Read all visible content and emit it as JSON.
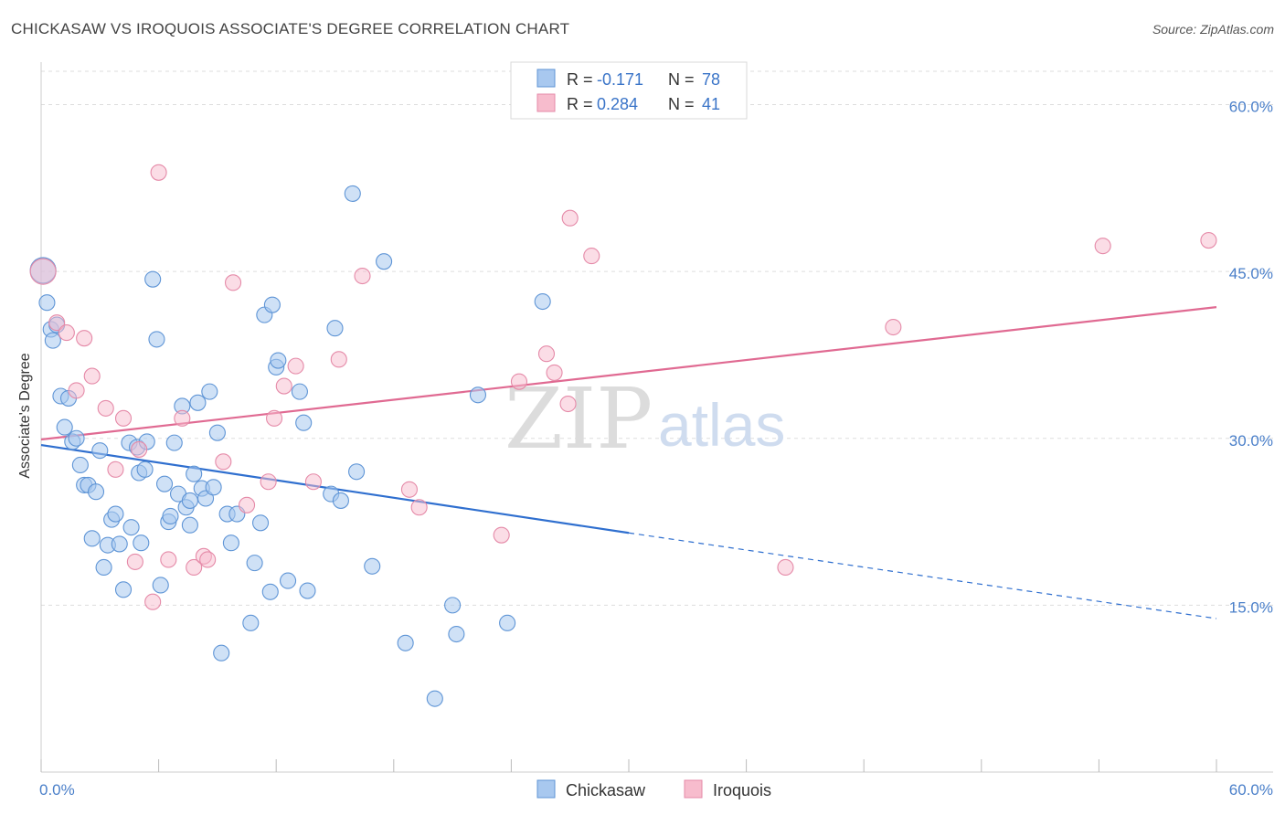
{
  "title": "CHICKASAW VS IROQUOIS ASSOCIATE'S DEGREE CORRELATION CHART",
  "source": "Source: ZipAtlas.com",
  "watermark": {
    "zip": "ZIP",
    "atlas": "atlas"
  },
  "colors": {
    "chickasaw_fill": "#a8c8ef",
    "chickasaw_stroke": "#5f95d6",
    "chickasaw_line": "#2f6fcf",
    "iroquois_fill": "#f7bccd",
    "iroquois_stroke": "#e58aa8",
    "iroquois_line": "#e06a92",
    "grid": "#dddddd",
    "tick_text": "#4a7fc9"
  },
  "legend": {
    "rows": [
      {
        "r_label": "R =",
        "r_value": "-0.171",
        "n_label": "N =",
        "n_value": "78"
      },
      {
        "r_label": "R =",
        "r_value": "0.284",
        "n_label": "N =",
        "n_value": "41"
      }
    ]
  },
  "chart_data": {
    "type": "scatter",
    "title": "CHICKASAW VS IROQUOIS ASSOCIATE'S DEGREE CORRELATION CHART",
    "xlabel": "",
    "ylabel": "Associate's Degree",
    "xlim": [
      0,
      60
    ],
    "ylim": [
      0,
      63
    ],
    "x_tick_labels": [
      "0.0%",
      "60.0%"
    ],
    "y_ticks": [
      15,
      30,
      45,
      60
    ],
    "y_tick_labels": [
      "15.0%",
      "30.0%",
      "45.0%",
      "60.0%"
    ],
    "grid": true,
    "legend_position": "top-center",
    "series": [
      {
        "name": "Chickasaw",
        "r": -0.171,
        "n": 78,
        "trend": {
          "x0": 0,
          "y0": 29.4,
          "x1": 30,
          "y1": 21.5,
          "dashed_to_x": 60,
          "dashed_to_y": 13.8
        },
        "points": [
          [
            0.1,
            45.1
          ],
          [
            0.3,
            42.2
          ],
          [
            0.5,
            39.8
          ],
          [
            0.6,
            38.8
          ],
          [
            0.8,
            40.2
          ],
          [
            1.0,
            33.8
          ],
          [
            1.2,
            31.0
          ],
          [
            1.4,
            33.6
          ],
          [
            1.6,
            29.7
          ],
          [
            1.8,
            30.0
          ],
          [
            2.0,
            27.6
          ],
          [
            2.2,
            25.8
          ],
          [
            2.4,
            25.8
          ],
          [
            2.8,
            25.2
          ],
          [
            3.0,
            28.9
          ],
          [
            2.6,
            21.0
          ],
          [
            3.2,
            18.4
          ],
          [
            3.4,
            20.4
          ],
          [
            3.6,
            22.7
          ],
          [
            3.8,
            23.2
          ],
          [
            4.0,
            20.5
          ],
          [
            4.2,
            16.4
          ],
          [
            4.5,
            29.6
          ],
          [
            4.6,
            22.0
          ],
          [
            4.9,
            29.2
          ],
          [
            5.0,
            26.9
          ],
          [
            5.1,
            20.6
          ],
          [
            5.3,
            27.2
          ],
          [
            5.4,
            29.7
          ],
          [
            5.7,
            44.3
          ],
          [
            5.9,
            38.9
          ],
          [
            6.1,
            16.8
          ],
          [
            6.3,
            25.9
          ],
          [
            6.5,
            22.5
          ],
          [
            6.6,
            23.0
          ],
          [
            6.8,
            29.6
          ],
          [
            7.0,
            25.0
          ],
          [
            7.2,
            32.9
          ],
          [
            7.4,
            23.8
          ],
          [
            7.6,
            22.2
          ],
          [
            7.6,
            24.4
          ],
          [
            7.8,
            26.8
          ],
          [
            8.0,
            33.2
          ],
          [
            8.2,
            25.5
          ],
          [
            8.4,
            24.6
          ],
          [
            8.6,
            34.2
          ],
          [
            8.8,
            25.6
          ],
          [
            9.0,
            30.5
          ],
          [
            9.2,
            10.7
          ],
          [
            9.5,
            23.2
          ],
          [
            9.7,
            20.6
          ],
          [
            10.0,
            23.2
          ],
          [
            10.7,
            13.4
          ],
          [
            10.9,
            18.8
          ],
          [
            11.2,
            22.4
          ],
          [
            11.4,
            41.1
          ],
          [
            11.7,
            16.2
          ],
          [
            11.8,
            42.0
          ],
          [
            12.0,
            36.4
          ],
          [
            12.1,
            37.0
          ],
          [
            12.6,
            17.2
          ],
          [
            13.2,
            34.2
          ],
          [
            13.4,
            31.4
          ],
          [
            13.6,
            16.3
          ],
          [
            14.8,
            25.0
          ],
          [
            15.0,
            39.9
          ],
          [
            15.3,
            24.4
          ],
          [
            15.9,
            52.0
          ],
          [
            16.1,
            27.0
          ],
          [
            16.9,
            18.5
          ],
          [
            17.5,
            45.9
          ],
          [
            18.6,
            11.6
          ],
          [
            20.1,
            6.6
          ],
          [
            21.0,
            15.0
          ],
          [
            21.2,
            12.4
          ],
          [
            22.3,
            33.9
          ],
          [
            23.8,
            13.4
          ],
          [
            25.6,
            42.3
          ]
        ]
      },
      {
        "name": "Iroquois",
        "r": 0.284,
        "n": 41,
        "trend": {
          "x0": 0,
          "y0": 29.9,
          "x1": 60,
          "y1": 41.8
        },
        "points": [
          [
            0.1,
            45.0
          ],
          [
            0.8,
            40.4
          ],
          [
            1.3,
            39.5
          ],
          [
            1.8,
            34.3
          ],
          [
            2.2,
            39.0
          ],
          [
            2.6,
            35.6
          ],
          [
            3.3,
            32.7
          ],
          [
            3.8,
            27.2
          ],
          [
            4.2,
            31.8
          ],
          [
            4.8,
            18.9
          ],
          [
            5.0,
            29.0
          ],
          [
            5.7,
            15.3
          ],
          [
            6.0,
            53.9
          ],
          [
            6.5,
            19.1
          ],
          [
            7.2,
            31.8
          ],
          [
            7.8,
            18.4
          ],
          [
            8.3,
            19.4
          ],
          [
            8.5,
            19.1
          ],
          [
            9.3,
            27.9
          ],
          [
            9.8,
            44.0
          ],
          [
            10.5,
            24.0
          ],
          [
            11.6,
            26.1
          ],
          [
            11.9,
            31.8
          ],
          [
            12.4,
            34.7
          ],
          [
            13.0,
            36.5
          ],
          [
            13.9,
            26.1
          ],
          [
            15.2,
            37.1
          ],
          [
            16.4,
            44.6
          ],
          [
            18.8,
            25.4
          ],
          [
            19.3,
            23.8
          ],
          [
            23.5,
            21.3
          ],
          [
            24.4,
            35.1
          ],
          [
            25.8,
            37.6
          ],
          [
            26.2,
            35.9
          ],
          [
            26.9,
            33.1
          ],
          [
            27.0,
            49.8
          ],
          [
            28.1,
            46.4
          ],
          [
            38.0,
            18.4
          ],
          [
            43.5,
            40.0
          ],
          [
            54.2,
            47.3
          ],
          [
            59.6,
            47.8
          ]
        ]
      }
    ]
  },
  "bottom_legend": {
    "items": [
      {
        "label": "Chickasaw"
      },
      {
        "label": "Iroquois"
      }
    ]
  }
}
